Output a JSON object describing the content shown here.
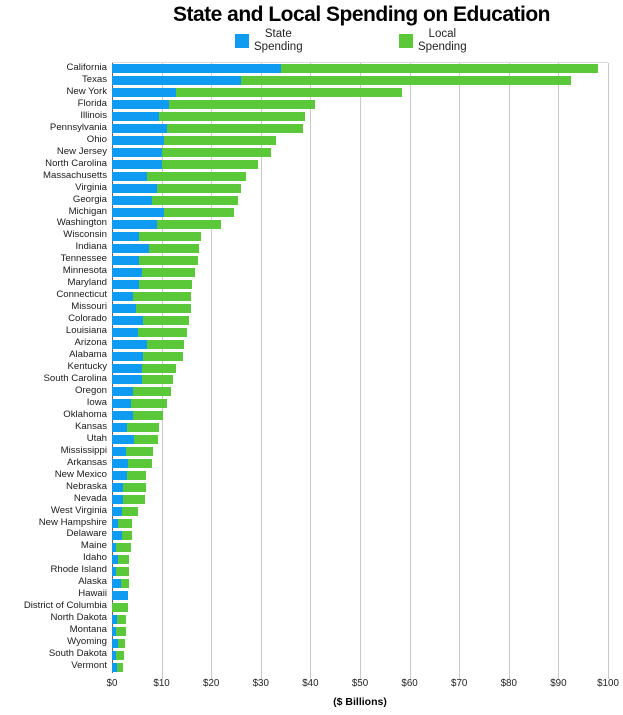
{
  "title": "State and Local Spending on Education",
  "legend": {
    "state": {
      "line1": "State",
      "line2": "Spending",
      "color": "#109bf2"
    },
    "local": {
      "line1": "Local",
      "line2": "Spending",
      "color": "#5ac838"
    }
  },
  "colors": {
    "state_bar": "#109bf2",
    "local_bar": "#5ac838",
    "gridline": "#c9c9c9",
    "zero_axis": "#666666"
  },
  "chart_data": {
    "type": "bar",
    "orientation": "horizontal",
    "stacked": true,
    "title": "State and Local Spending on Education",
    "xlabel": "($ Billions)",
    "ylabel": "",
    "xlim": [
      0,
      100
    ],
    "xtick_values": [
      0,
      10,
      20,
      30,
      40,
      50,
      60,
      70,
      80,
      90,
      100
    ],
    "xtick_labels": [
      "$0",
      "$10",
      "$20",
      "$30",
      "$40",
      "$50",
      "$60",
      "$70",
      "$80",
      "$90",
      "$100"
    ],
    "grid": true,
    "legend_position": "top",
    "categories": [
      "California",
      "Texas",
      "New York",
      "Florida",
      "Illinois",
      "Pennsylvania",
      "Ohio",
      "New Jersey",
      "North Carolina",
      "Massachusetts",
      "Virginia",
      "Georgia",
      "Michigan",
      "Washington",
      "Wisconsin",
      "Indiana",
      "Tennessee",
      "Minnesota",
      "Maryland",
      "Connecticut",
      "Missouri",
      "Colorado",
      "Louisiana",
      "Arizona",
      "Alabama",
      "Kentucky",
      "South Carolina",
      "Oregon",
      "Iowa",
      "Oklahoma",
      "Kansas",
      "Utah",
      "Mississippi",
      "Arkansas",
      "New Mexico",
      "Nebraska",
      "Nevada",
      "West Virginia",
      "New Hampshire",
      "Delaware",
      "Maine",
      "Idaho",
      "Rhode Island",
      "Alaska",
      "Hawaii",
      "District of Columbia",
      "North Dakota",
      "Montana",
      "Wyoming",
      "South Dakota",
      "Vermont"
    ],
    "series": [
      {
        "name": "State Spending",
        "color": "#109bf2",
        "values": [
          34,
          26,
          13,
          11.5,
          9.5,
          11,
          10.5,
          10,
          10,
          7,
          9,
          8,
          10.5,
          9,
          5.5,
          7.5,
          5.5,
          6,
          5.5,
          4.2,
          4.8,
          6.3,
          5.2,
          7,
          6.3,
          6.1,
          6,
          4.2,
          3.8,
          4.3,
          3,
          4.5,
          2.8,
          3.2,
          3,
          2.3,
          2.3,
          2.1,
          1.3,
          2,
          0.9,
          1.3,
          0.9,
          1.8,
          3.3,
          0,
          1.1,
          0.9,
          1.3,
          0.8,
          1.1
        ]
      },
      {
        "name": "Local Spending",
        "color": "#5ac838",
        "values": [
          64,
          66.5,
          45.5,
          29.5,
          29.5,
          27.5,
          22.5,
          22,
          19.5,
          20,
          17,
          17.5,
          14,
          13,
          12.5,
          10,
          11.9,
          10.7,
          10.6,
          11.8,
          11.1,
          9.2,
          10,
          7.6,
          8,
          6.9,
          6.3,
          7.6,
          7.3,
          6,
          6.4,
          4.7,
          5.5,
          4.9,
          3.9,
          4.5,
          4.3,
          3.2,
          2.8,
          2,
          3,
          2.2,
          2.5,
          1.6,
          0,
          3.2,
          1.8,
          1.9,
          1.4,
          1.6,
          1.2
        ]
      }
    ]
  }
}
